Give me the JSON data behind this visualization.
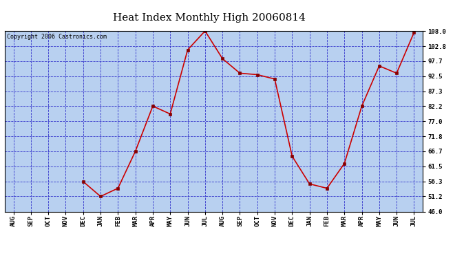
{
  "title": "Heat Index Monthly High 20060814",
  "copyright": "Copyright 2006 Castronics.com",
  "months": [
    "AUG",
    "SEP",
    "OCT",
    "NOV",
    "DEC",
    "JAN",
    "FEB",
    "MAR",
    "APR",
    "MAY",
    "JUN",
    "JUL",
    "AUG",
    "SEP",
    "OCT",
    "NOV",
    "DEC",
    "JAN",
    "FEB",
    "MAR",
    "APR",
    "MAY",
    "JUN",
    "JUL"
  ],
  "values": [
    null,
    null,
    null,
    null,
    56.3,
    51.2,
    54.0,
    66.7,
    82.2,
    79.5,
    101.5,
    108.0,
    98.5,
    93.5,
    93.0,
    91.5,
    65.0,
    55.5,
    54.0,
    62.5,
    82.2,
    96.0,
    93.5,
    107.5
  ],
  "ylim": [
    46.0,
    108.0
  ],
  "yticks": [
    46.0,
    51.2,
    56.3,
    61.5,
    66.7,
    71.8,
    77.0,
    82.2,
    87.3,
    92.5,
    97.7,
    102.8,
    108.0
  ],
  "line_color": "#cc0000",
  "marker_color": "#880000",
  "bg_color": "#b8d0f0",
  "grid_color": "#3333cc",
  "title_fontsize": 11,
  "tick_fontsize": 6.5,
  "copyright_fontsize": 6
}
